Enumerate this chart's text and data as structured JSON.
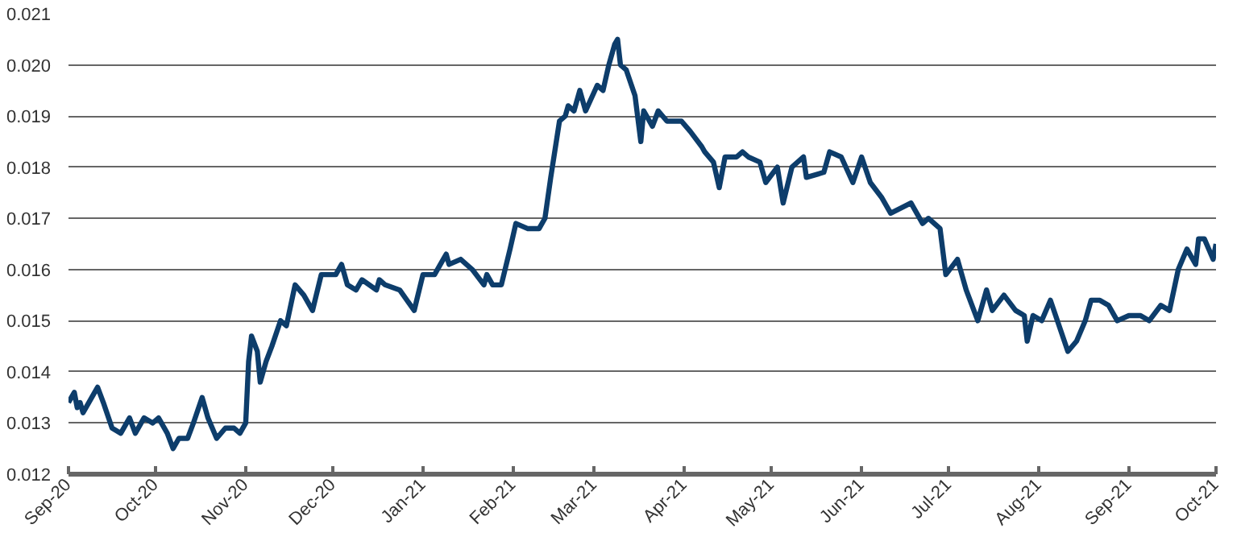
{
  "chart_data": {
    "type": "line",
    "x": [
      "2020-09-01",
      "2020-09-03",
      "2020-09-04",
      "2020-09-05",
      "2020-09-06",
      "2020-09-10",
      "2020-09-11",
      "2020-09-13",
      "2020-09-16",
      "2020-09-19",
      "2020-09-22",
      "2020-09-24",
      "2020-09-27",
      "2020-09-30",
      "2020-10-02",
      "2020-10-05",
      "2020-10-07",
      "2020-10-09",
      "2020-10-12",
      "2020-10-14",
      "2020-10-17",
      "2020-10-19",
      "2020-10-22",
      "2020-10-25",
      "2020-10-28",
      "2020-10-30",
      "2020-11-01",
      "2020-11-02",
      "2020-11-03",
      "2020-11-05",
      "2020-11-06",
      "2020-11-08",
      "2020-11-10",
      "2020-11-13",
      "2020-11-15",
      "2020-11-18",
      "2020-11-21",
      "2020-11-24",
      "2020-11-27",
      "2020-12-02",
      "2020-12-04",
      "2020-12-06",
      "2020-12-09",
      "2020-12-11",
      "2020-12-16",
      "2020-12-17",
      "2020-12-19",
      "2020-12-24",
      "2020-12-29",
      "2021-01-01",
      "2021-01-05",
      "2021-01-08",
      "2021-01-09",
      "2021-01-10",
      "2021-01-14",
      "2021-01-18",
      "2021-01-22",
      "2021-01-23",
      "2021-01-25",
      "2021-01-28",
      "2021-01-31",
      "2021-02-02",
      "2021-02-06",
      "2021-02-10",
      "2021-02-12",
      "2021-02-14",
      "2021-02-17",
      "2021-02-19",
      "2021-02-20",
      "2021-02-22",
      "2021-02-24",
      "2021-02-26",
      "2021-03-02",
      "2021-03-04",
      "2021-03-06",
      "2021-03-08",
      "2021-03-09",
      "2021-03-10",
      "2021-03-12",
      "2021-03-15",
      "2021-03-17",
      "2021-03-18",
      "2021-03-21",
      "2021-03-23",
      "2021-03-26",
      "2021-03-31",
      "2021-04-03",
      "2021-04-07",
      "2021-04-08",
      "2021-04-11",
      "2021-04-13",
      "2021-04-15",
      "2021-04-19",
      "2021-04-21",
      "2021-04-23",
      "2021-04-27",
      "2021-04-29",
      "2021-05-03",
      "2021-05-05",
      "2021-05-08",
      "2021-05-12",
      "2021-05-13",
      "2021-05-19",
      "2021-05-21",
      "2021-05-25",
      "2021-05-29",
      "2021-06-01",
      "2021-06-04",
      "2021-06-08",
      "2021-06-11",
      "2021-06-18",
      "2021-06-22",
      "2021-06-24",
      "2021-06-28",
      "2021-06-30",
      "2021-07-04",
      "2021-07-07",
      "2021-07-11",
      "2021-07-14",
      "2021-07-16",
      "2021-07-20",
      "2021-07-24",
      "2021-07-27",
      "2021-07-28",
      "2021-07-30",
      "2021-08-02",
      "2021-08-05",
      "2021-08-08",
      "2021-08-11",
      "2021-08-14",
      "2021-08-17",
      "2021-08-19",
      "2021-08-22",
      "2021-08-25",
      "2021-08-28",
      "2021-09-01",
      "2021-09-05",
      "2021-09-08",
      "2021-09-12",
      "2021-09-15",
      "2021-09-18",
      "2021-09-21",
      "2021-09-24",
      "2021-09-25",
      "2021-09-27",
      "2021-09-30",
      "2021-10-01"
    ],
    "series": [
      {
        "color": "#0d3d6b",
        "values": [
          0.0134,
          0.0136,
          0.0133,
          0.0134,
          0.0132,
          0.0136,
          0.0137,
          0.0134,
          0.0129,
          0.0128,
          0.0131,
          0.0128,
          0.0131,
          0.013,
          0.0131,
          0.0128,
          0.0125,
          0.0127,
          0.0127,
          0.013,
          0.0135,
          0.0131,
          0.0127,
          0.0129,
          0.0129,
          0.0128,
          0.013,
          0.0142,
          0.0147,
          0.0144,
          0.0138,
          0.0142,
          0.0145,
          0.015,
          0.0149,
          0.0157,
          0.0155,
          0.0152,
          0.0159,
          0.0159,
          0.0161,
          0.0157,
          0.0156,
          0.0158,
          0.0156,
          0.0158,
          0.0157,
          0.0156,
          0.0152,
          0.0159,
          0.0159,
          0.0162,
          0.0163,
          0.0161,
          0.0162,
          0.016,
          0.0157,
          0.0159,
          0.0157,
          0.0157,
          0.0164,
          0.0169,
          0.0168,
          0.0168,
          0.017,
          0.0178,
          0.0189,
          0.019,
          0.0192,
          0.0191,
          0.0195,
          0.0191,
          0.0196,
          0.0195,
          0.02,
          0.0204,
          0.0205,
          0.02,
          0.0199,
          0.0194,
          0.0185,
          0.0191,
          0.0188,
          0.0191,
          0.0189,
          0.0189,
          0.0187,
          0.0184,
          0.0183,
          0.0181,
          0.0176,
          0.0182,
          0.0182,
          0.0183,
          0.0182,
          0.0181,
          0.0177,
          0.018,
          0.0173,
          0.018,
          0.0182,
          0.0178,
          0.0179,
          0.0183,
          0.0182,
          0.0177,
          0.0182,
          0.0177,
          0.0174,
          0.0171,
          0.0173,
          0.0169,
          0.017,
          0.0168,
          0.0159,
          0.0162,
          0.0156,
          0.015,
          0.0156,
          0.0152,
          0.0155,
          0.0152,
          0.0151,
          0.0146,
          0.0151,
          0.015,
          0.0154,
          0.0149,
          0.0144,
          0.0146,
          0.015,
          0.0154,
          0.0154,
          0.0153,
          0.015,
          0.0151,
          0.0151,
          0.015,
          0.0153,
          0.0152,
          0.016,
          0.0164,
          0.0161,
          0.0166,
          0.0166,
          0.0162,
          0.0165
        ]
      }
    ],
    "xlim": [
      "2020-09-01",
      "2021-10-01"
    ],
    "xticks": [
      {
        "value": "2020-09-01",
        "label": "Sep-20"
      },
      {
        "value": "2020-10-01",
        "label": "Oct-20"
      },
      {
        "value": "2020-11-01",
        "label": "Nov-20"
      },
      {
        "value": "2020-12-01",
        "label": "Dec-20"
      },
      {
        "value": "2021-01-01",
        "label": "Jan-21"
      },
      {
        "value": "2021-02-01",
        "label": "Feb-21"
      },
      {
        "value": "2021-03-01",
        "label": "Mar-21"
      },
      {
        "value": "2021-04-01",
        "label": "Apr-21"
      },
      {
        "value": "2021-05-01",
        "label": "May-21"
      },
      {
        "value": "2021-06-01",
        "label": "Jun-21"
      },
      {
        "value": "2021-07-01",
        "label": "Jul-21"
      },
      {
        "value": "2021-08-01",
        "label": "Aug-21"
      },
      {
        "value": "2021-09-01",
        "label": "Sep-21"
      },
      {
        "value": "2021-10-01",
        "label": "Oct-21"
      }
    ],
    "ylim": [
      0.012,
      0.021
    ],
    "yticks": [
      {
        "value": 0.012,
        "label": "0.012"
      },
      {
        "value": 0.013,
        "label": "0.013"
      },
      {
        "value": 0.014,
        "label": "0.014"
      },
      {
        "value": 0.015,
        "label": "0.015"
      },
      {
        "value": 0.016,
        "label": "0.016"
      },
      {
        "value": 0.017,
        "label": "0.017"
      },
      {
        "value": 0.018,
        "label": "0.018"
      },
      {
        "value": 0.019,
        "label": "0.019"
      },
      {
        "value": 0.02,
        "label": "0.020"
      },
      {
        "value": 0.021,
        "label": "0.021"
      }
    ],
    "grid": "y"
  }
}
